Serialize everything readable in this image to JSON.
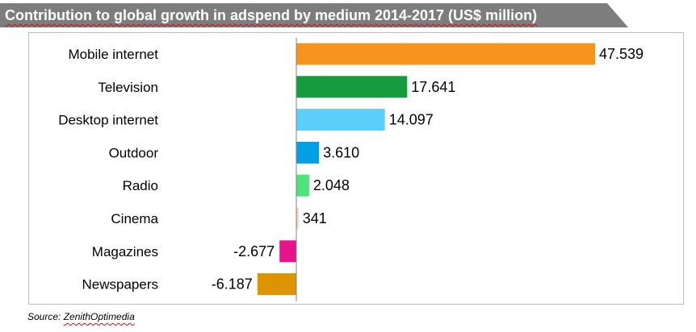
{
  "chart_data": {
    "type": "bar",
    "orientation": "horizontal",
    "title": "Contribution to global growth in adspend by medium 2014-2017 (US$ million)",
    "categories": [
      "Mobile internet",
      "Television",
      "Desktop internet",
      "Outdoor",
      "Radio",
      "Cinema",
      "Magazines",
      "Newspapers"
    ],
    "values": [
      47539,
      17641,
      14097,
      3610,
      2048,
      341,
      -2677,
      -6187
    ],
    "value_labels": [
      "47.539",
      "17.641",
      "14.097",
      "3.610",
      "2.048",
      "341",
      "-2.677",
      "-6.187"
    ],
    "colors": [
      "#f7941d",
      "#169b3e",
      "#5bcefa",
      "#00a0e3",
      "#4fe37c",
      "#fbd3b8",
      "#e6148a",
      "#dc9400"
    ],
    "xlim": [
      -8700,
      55000
    ],
    "grid": false,
    "legend": "none",
    "xlabel": "",
    "ylabel": ""
  },
  "source": {
    "prefix": "Source:",
    "name": "ZenithOptimedia"
  }
}
